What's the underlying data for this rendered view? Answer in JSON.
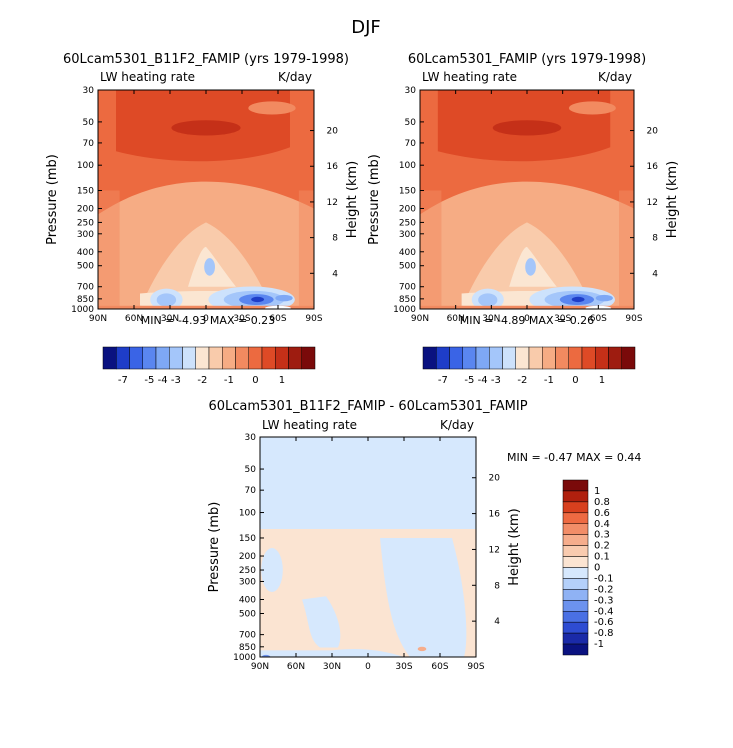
{
  "figure_title": "DJF",
  "chart_data": [
    {
      "type": "heatmap",
      "title": "60Lcam5301_B11F2_FAMIP (yrs 1979-1998)",
      "left_label": "LW heating rate",
      "right_label": "K/day",
      "xlabel": "",
      "ylabel": "Pressure (mb)",
      "y2label": "Height (km)",
      "x_ticks": [
        "90N",
        "60N",
        "30N",
        "0",
        "30S",
        "60S",
        "90S"
      ],
      "x_values": [
        90,
        60,
        30,
        0,
        -30,
        -60,
        -90
      ],
      "y_ticks": [
        30,
        50,
        70,
        100,
        150,
        200,
        250,
        300,
        400,
        500,
        700,
        850,
        1000
      ],
      "y_log": true,
      "ylim": [
        1000,
        30
      ],
      "height_ticks": [
        20,
        16,
        12,
        8,
        4
      ],
      "stats": "MIN =   -4.93   MAX =    0.23",
      "min": -4.93,
      "max": 0.23
    },
    {
      "type": "heatmap",
      "title": "60Lcam5301_FAMIP (yrs 1979-1998)",
      "left_label": "LW heating rate",
      "right_label": "K/day",
      "xlabel": "",
      "ylabel": "Pressure (mb)",
      "y2label": "Height (km)",
      "x_ticks": [
        "90N",
        "60N",
        "30N",
        "0",
        "30S",
        "60S",
        "90S"
      ],
      "x_values": [
        90,
        60,
        30,
        0,
        -30,
        -60,
        -90
      ],
      "y_ticks": [
        30,
        50,
        70,
        100,
        150,
        200,
        250,
        300,
        400,
        500,
        700,
        850,
        1000
      ],
      "y_log": true,
      "ylim": [
        1000,
        30
      ],
      "height_ticks": [
        20,
        16,
        12,
        8,
        4
      ],
      "stats": "MIN =   -4.89   MAX =    0.26",
      "min": -4.89,
      "max": 0.26
    },
    {
      "type": "heatmap",
      "title": "60Lcam5301_B11F2_FAMIP - 60Lcam5301_FAMIP",
      "left_label": "LW heating rate",
      "right_label": "K/day",
      "xlabel": "",
      "ylabel": "Pressure (mb)",
      "y2label": "Height (km)",
      "x_ticks": [
        "90N",
        "60N",
        "30N",
        "0",
        "30S",
        "60S",
        "90S"
      ],
      "x_values": [
        90,
        60,
        30,
        0,
        -30,
        -60,
        -90
      ],
      "y_ticks": [
        30,
        50,
        70,
        100,
        150,
        200,
        250,
        300,
        400,
        500,
        700,
        850,
        1000
      ],
      "y_log": true,
      "ylim": [
        1000,
        30
      ],
      "height_ticks": [
        20,
        16,
        12,
        8,
        4
      ],
      "stats": "MIN =   -0.47   MAX =    0.44",
      "min": -0.47,
      "max": 0.44
    }
  ],
  "colorbar_top": {
    "labels": [
      "-7",
      "-5",
      "-4",
      "-3",
      "-2",
      "-1",
      "0",
      "1"
    ],
    "colors": [
      "#0a1280",
      "#1e3dc8",
      "#3a64e6",
      "#5a86f0",
      "#7ea8f5",
      "#a4c6fa",
      "#cde2fc",
      "#fbe6d2",
      "#f9cbab",
      "#f6ac84",
      "#f28a60",
      "#ec6a40",
      "#de4a26",
      "#c53018",
      "#9e1c10",
      "#7a0a0a"
    ]
  },
  "colorbar_diff": {
    "labels": [
      "1",
      "0.8",
      "0.6",
      "0.4",
      "0.3",
      "0.2",
      "0.1",
      "0",
      "-0.1",
      "-0.2",
      "-0.3",
      "-0.4",
      "-0.6",
      "-0.8",
      "-1"
    ],
    "colors": [
      "#7a0a0a",
      "#b0200e",
      "#d8401e",
      "#ee6a42",
      "#f28d68",
      "#f6ad8c",
      "#f9cbaf",
      "#fbe4d2",
      "#d6e8fd",
      "#b4d0fa",
      "#8fb2f4",
      "#6c92ee",
      "#4a70e4",
      "#2e4cd2",
      "#1a2aa8",
      "#0a1280"
    ]
  }
}
